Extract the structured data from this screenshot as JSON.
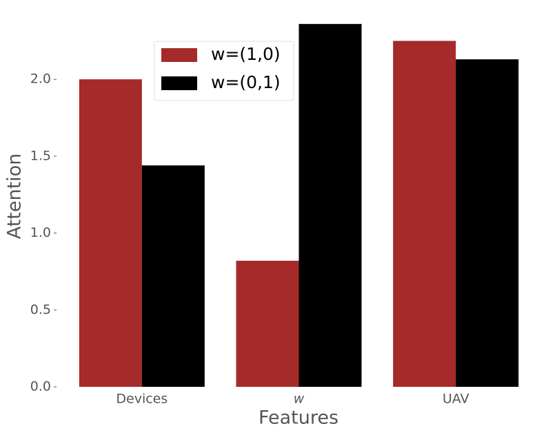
{
  "chart_data": {
    "type": "bar",
    "x_label": "Features",
    "y_label": "Attention",
    "categories": [
      "Devices",
      "w",
      "UAV"
    ],
    "series": [
      {
        "name": "w=(1,0)",
        "color": "#a52a2a",
        "values": [
          2.0,
          0.82,
          2.25
        ]
      },
      {
        "name": "w=(0,1)",
        "color": "#000000",
        "values": [
          1.44,
          2.36,
          2.13
        ]
      }
    ],
    "ylim": [
      0,
      2.48
    ],
    "yticks": [
      {
        "value": 0,
        "label": "0.0"
      },
      0.5,
      {
        "value": 1,
        "label": "1.0"
      },
      1.5,
      {
        "value": 2,
        "label": "2.0"
      }
    ],
    "legend": "upper center"
  }
}
